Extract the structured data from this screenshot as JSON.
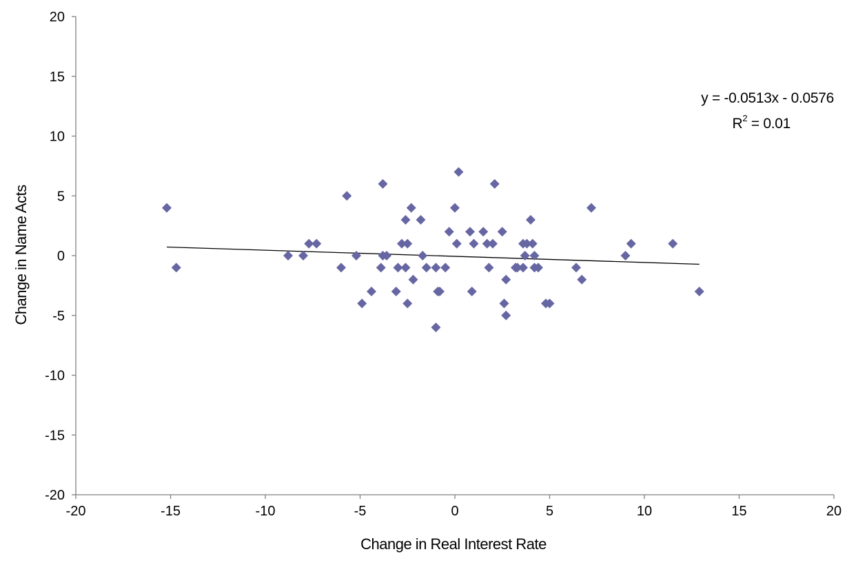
{
  "chart_data": {
    "type": "scatter",
    "xlabel": "Change in Real Interest Rate",
    "ylabel": "Change in Name Acts",
    "xlim": [
      -20,
      20
    ],
    "ylim": [
      -20,
      20
    ],
    "x_ticks": [
      "-20",
      "-15",
      "-10",
      "-5",
      "0",
      "5",
      "10",
      "15",
      "20"
    ],
    "y_ticks": [
      "20",
      "15",
      "10",
      "5",
      "0",
      "-5",
      "-10",
      "-15",
      "-20"
    ],
    "grid": false,
    "legend": "none",
    "marker": "diamond",
    "marker_color": "#6666A3",
    "trendline": {
      "equation": "y = -0.0513x - 0.0576",
      "r2_label": "R",
      "r2_sup": "2",
      "r2_value": " = 0.01",
      "slope": -0.0513,
      "intercept": -0.0576,
      "x_range": [
        -15.2,
        12.9
      ],
      "color": "#000000"
    },
    "points": [
      {
        "x": -15.2,
        "y": 4
      },
      {
        "x": -14.7,
        "y": -1
      },
      {
        "x": -8.8,
        "y": 0
      },
      {
        "x": -8.0,
        "y": 0
      },
      {
        "x": -7.7,
        "y": 1
      },
      {
        "x": -7.3,
        "y": 1
      },
      {
        "x": -6.0,
        "y": -1
      },
      {
        "x": -5.7,
        "y": 5
      },
      {
        "x": -5.2,
        "y": 0
      },
      {
        "x": -4.9,
        "y": -4
      },
      {
        "x": -4.4,
        "y": -3
      },
      {
        "x": -3.9,
        "y": -1
      },
      {
        "x": -3.8,
        "y": 6
      },
      {
        "x": -3.8,
        "y": 0
      },
      {
        "x": -3.6,
        "y": 0
      },
      {
        "x": -3.1,
        "y": -3
      },
      {
        "x": -3.0,
        "y": -1
      },
      {
        "x": -2.8,
        "y": 1
      },
      {
        "x": -2.6,
        "y": 3
      },
      {
        "x": -2.6,
        "y": -1
      },
      {
        "x": -2.5,
        "y": 1
      },
      {
        "x": -2.5,
        "y": -4
      },
      {
        "x": -2.3,
        "y": 4
      },
      {
        "x": -2.2,
        "y": -2
      },
      {
        "x": -1.8,
        "y": 3
      },
      {
        "x": -1.7,
        "y": 0
      },
      {
        "x": -1.5,
        "y": -1
      },
      {
        "x": -1.0,
        "y": -1
      },
      {
        "x": -1.0,
        "y": -6
      },
      {
        "x": -0.9,
        "y": -3
      },
      {
        "x": -0.8,
        "y": -3
      },
      {
        "x": -0.5,
        "y": -1
      },
      {
        "x": -0.3,
        "y": 2
      },
      {
        "x": 0.0,
        "y": 4
      },
      {
        "x": 0.1,
        "y": 1
      },
      {
        "x": 0.2,
        "y": 7
      },
      {
        "x": 0.8,
        "y": 2
      },
      {
        "x": 0.9,
        "y": -3
      },
      {
        "x": 1.0,
        "y": 1
      },
      {
        "x": 1.5,
        "y": 2
      },
      {
        "x": 1.7,
        "y": 1
      },
      {
        "x": 1.8,
        "y": -1
      },
      {
        "x": 2.0,
        "y": 1
      },
      {
        "x": 2.1,
        "y": 6
      },
      {
        "x": 2.5,
        "y": 2
      },
      {
        "x": 2.6,
        "y": -4
      },
      {
        "x": 2.7,
        "y": -2
      },
      {
        "x": 2.7,
        "y": -5
      },
      {
        "x": 3.2,
        "y": -1
      },
      {
        "x": 3.3,
        "y": -1
      },
      {
        "x": 3.6,
        "y": 1
      },
      {
        "x": 3.6,
        "y": -1
      },
      {
        "x": 3.7,
        "y": 0
      },
      {
        "x": 3.8,
        "y": 1
      },
      {
        "x": 4.0,
        "y": 3
      },
      {
        "x": 4.1,
        "y": 1
      },
      {
        "x": 4.2,
        "y": -1
      },
      {
        "x": 4.2,
        "y": 0
      },
      {
        "x": 4.4,
        "y": -1
      },
      {
        "x": 4.8,
        "y": -4
      },
      {
        "x": 5.0,
        "y": -4
      },
      {
        "x": 6.4,
        "y": -1
      },
      {
        "x": 6.7,
        "y": -2
      },
      {
        "x": 7.2,
        "y": 4
      },
      {
        "x": 9.0,
        "y": 0
      },
      {
        "x": 9.3,
        "y": 1
      },
      {
        "x": 11.5,
        "y": 1
      },
      {
        "x": 12.9,
        "y": -3
      }
    ]
  }
}
